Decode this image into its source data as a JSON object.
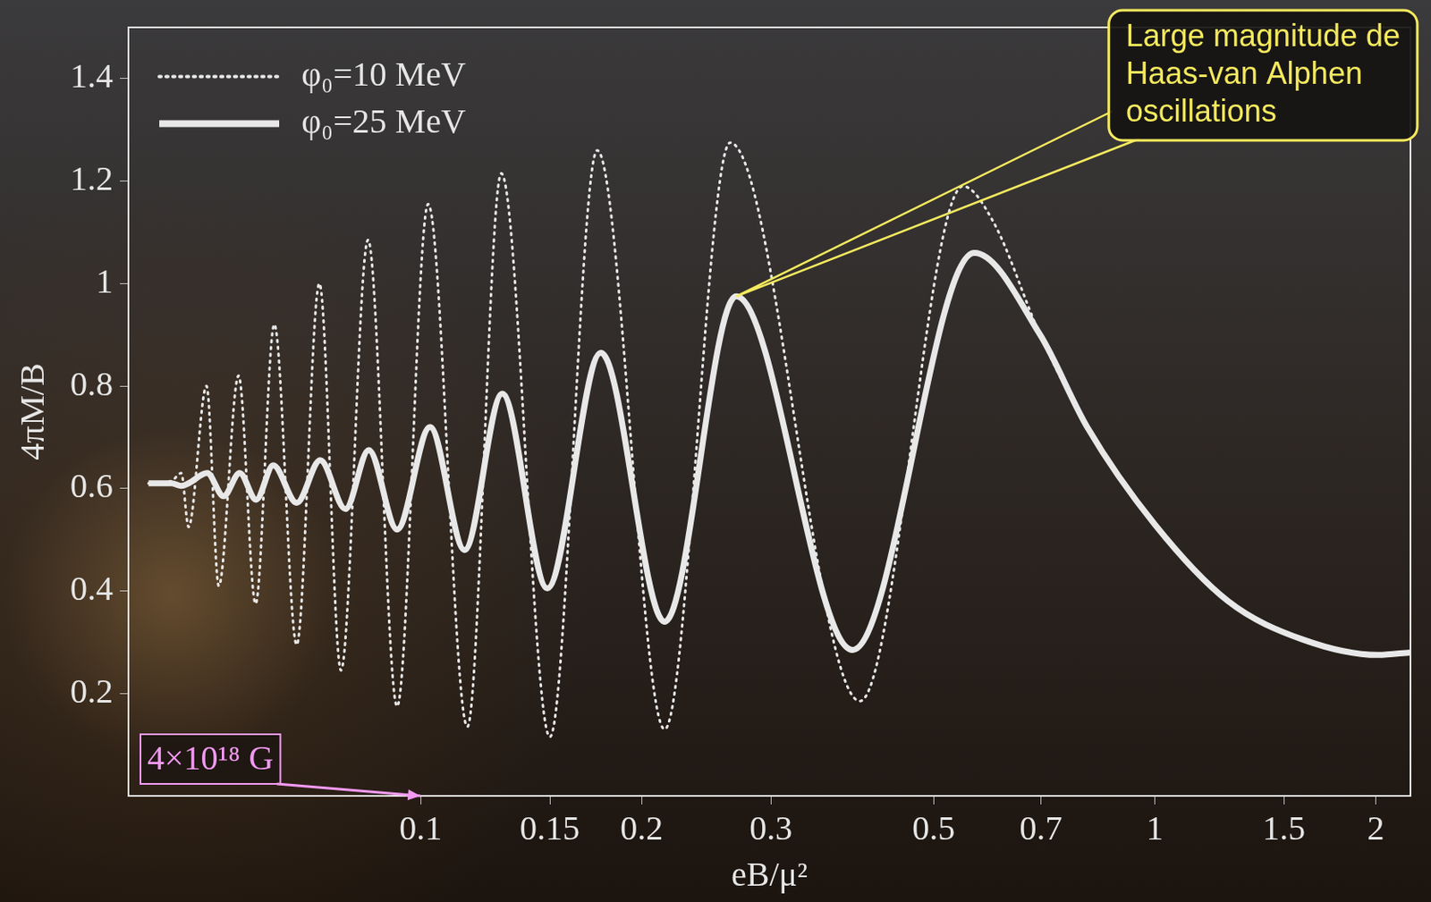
{
  "chart_data": {
    "type": "line",
    "x_label": "eB/μ²",
    "y_label": "4πM/B",
    "log": "x",
    "grid": false,
    "legend": "upper left",
    "xlim": [
      0.04,
      2.23
    ],
    "ylim": [
      0,
      1.5
    ],
    "xticks": [
      0.1,
      0.15,
      0.2,
      0.3,
      0.5,
      0.7,
      1,
      1.5,
      2
    ],
    "yticks": [
      0.2,
      0.4,
      0.6,
      0.8,
      1,
      1.2,
      1.4
    ],
    "series": [
      {
        "name": "φ₀=10 MeV",
        "color": "#e8e8e8",
        "line_style": "dotted",
        "x": [
          0.0426,
          0.0458,
          0.0472,
          0.0483,
          0.0511,
          0.0531,
          0.0565,
          0.0596,
          0.0632,
          0.0678,
          0.0728,
          0.0779,
          0.0848,
          0.0929,
          0.1024,
          0.1158,
          0.1288,
          0.15,
          0.174,
          0.215,
          0.264,
          0.3967,
          0.548,
          0.603,
          0.698,
          0.809,
          1.0,
          1.259,
          1.592,
          2.015,
          2.23
        ],
        "values": [
          0.61,
          0.615,
          0.63,
          0.525,
          0.8,
          0.41,
          0.82,
          0.375,
          0.92,
          0.295,
          1.0,
          0.245,
          1.085,
          0.175,
          1.155,
          0.135,
          1.215,
          0.115,
          1.26,
          0.13,
          1.275,
          0.185,
          1.19,
          1.12,
          0.9,
          0.72,
          0.53,
          0.38,
          0.305,
          0.275,
          0.28
        ]
      },
      {
        "name": "φ₀=25 MeV",
        "color": "#e8e8e8",
        "line_style": "solid",
        "x": [
          0.0426,
          0.0458,
          0.0472,
          0.0483,
          0.0512,
          0.0539,
          0.0567,
          0.0597,
          0.063,
          0.0678,
          0.073,
          0.079,
          0.085,
          0.0929,
          0.103,
          0.1148,
          0.1292,
          0.1488,
          0.176,
          0.215,
          0.269,
          0.3875,
          0.568,
          0.698,
          0.809,
          1.0,
          1.259,
          1.592,
          2.015,
          2.23
        ],
        "values": [
          0.61,
          0.61,
          0.605,
          0.61,
          0.63,
          0.585,
          0.63,
          0.578,
          0.645,
          0.572,
          0.655,
          0.56,
          0.675,
          0.52,
          0.72,
          0.48,
          0.785,
          0.405,
          0.865,
          0.34,
          0.975,
          0.285,
          1.06,
          0.9,
          0.72,
          0.53,
          0.38,
          0.305,
          0.275,
          0.28
        ]
      }
    ],
    "annotations": [
      {
        "text": "Large magnitude de Haas-van Alphen oscillations",
        "x": 0.269,
        "y": 0.975,
        "color": "#f4ea5e"
      },
      {
        "text": "4×10¹⁸ G",
        "x": 0.1,
        "y": 0,
        "color": "#f29af2"
      }
    ]
  }
}
